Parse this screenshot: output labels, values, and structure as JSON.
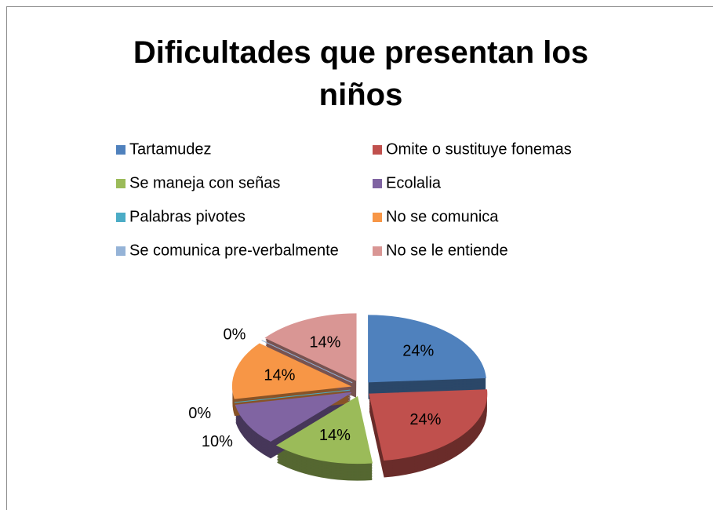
{
  "chart_data": {
    "type": "pie",
    "title": "Dificultades que presentan los niños",
    "categories": [
      "Tartamudez",
      "Omite o sustituye fonemas",
      "Se maneja con señas",
      "Ecolalia",
      "Palabras pivotes",
      "No se comunica",
      "Se comunica pre-verbalmente",
      "No se le entiende"
    ],
    "values": [
      24,
      24,
      14,
      10,
      0,
      14,
      0,
      14
    ],
    "value_labels": [
      "24%",
      "24%",
      "14%",
      "10%",
      "0%",
      "14%",
      "0%",
      "14%"
    ],
    "colors": [
      "#4f81bd",
      "#c0504d",
      "#9bbb59",
      "#8064a2",
      "#4bacc6",
      "#f79646",
      "#95b3d7",
      "#d99694"
    ],
    "legend": "top"
  }
}
